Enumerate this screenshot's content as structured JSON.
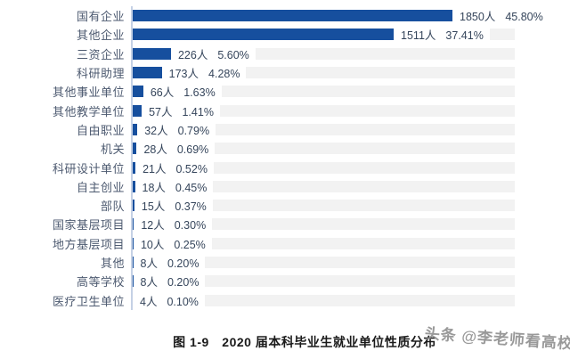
{
  "chart_data": {
    "type": "bar",
    "orientation": "horizontal",
    "title": "图 1-9　2020 届本科毕业生就业单位性质分布",
    "xlabel": "",
    "ylabel": "",
    "grid": false,
    "legend": false,
    "unit_suffix": "人",
    "scale_max_value": 1850,
    "categories": [
      "国有企业",
      "其他企业",
      "三资企业",
      "科研助理",
      "其他事业单位",
      "其他教学单位",
      "自由职业",
      "机关",
      "科研设计单位",
      "自主创业",
      "部队",
      "国家基层项目",
      "地方基层项目",
      "其他",
      "高等学校",
      "医疗卫生单位"
    ],
    "values": [
      1850,
      1511,
      226,
      173,
      66,
      57,
      32,
      28,
      21,
      18,
      15,
      12,
      10,
      8,
      8,
      4
    ],
    "count_labels": [
      "1850人",
      "1511人",
      "226人",
      "173人",
      "66人",
      "57人",
      "32人",
      "28人",
      "21人",
      "18人",
      "15人",
      "12人",
      "10人",
      "8人",
      "8人",
      "4人"
    ],
    "percent_labels": [
      "45.80%",
      "37.41%",
      "5.60%",
      "4.28%",
      "1.63%",
      "1.41%",
      "0.79%",
      "0.69%",
      "0.52%",
      "0.45%",
      "0.37%",
      "0.30%",
      "0.25%",
      "0.20%",
      "0.20%",
      "0.10%"
    ]
  },
  "caption": {
    "text": "图 1-9　2020 届本科毕业生就业单位性质分布"
  },
  "watermark": {
    "text": "头条 @李老师看高校"
  },
  "colors": {
    "background": "#FFFFFF",
    "bar": "#164F9E",
    "track": "#F2F2F2",
    "axis_line": "#C5D1E5",
    "label_text": "#4D5A70",
    "value_text": "#35455B",
    "caption_text": "#1A1A1A",
    "watermark_text": "#8F8F8F"
  }
}
